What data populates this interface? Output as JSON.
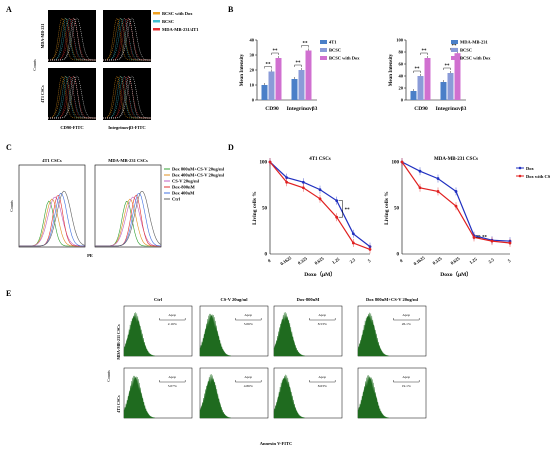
{
  "panels": {
    "A": {
      "letter": "A",
      "legend": [
        "BCSC with Dox",
        "BCSC",
        "MDA-MB-231/4T1"
      ],
      "legend_colors": [
        "#f0a020",
        "#40c0d0",
        "#e03030"
      ],
      "row_labels": [
        "MDA-MB-231",
        "4T1 CSCs"
      ],
      "ylabel": "Counts",
      "xlabels": [
        "CD90-FITC",
        "Integrinαvβ3-FITC"
      ]
    },
    "B": {
      "letter": "B",
      "left": {
        "ylabel": "Mean Intensity",
        "legend": [
          "4T1",
          "BCSC",
          "BCSC with Dox"
        ],
        "ticks": [
          "0",
          "10",
          "20",
          "30",
          "40"
        ],
        "groups": [
          "CD90",
          "Integrinαvβ3"
        ],
        "sig": [
          "**",
          "**",
          "**",
          "**",
          "**",
          "**"
        ]
      },
      "right": {
        "ylabel": "Mean Intensity",
        "legend": [
          "MDA-MB-231",
          "BCSC",
          "BCSC with Dox"
        ],
        "ticks": [
          "0",
          "20",
          "40",
          "60",
          "80",
          "100"
        ],
        "groups": [
          "CD90",
          "Integrinαvβ3"
        ],
        "sig": [
          "**",
          "**",
          "**",
          "**",
          "**",
          "**"
        ]
      },
      "colors": [
        "#4a7fc8",
        "#8a9bd8",
        "#d070d0"
      ]
    },
    "C": {
      "letter": "C",
      "titles": [
        "4T1 CSCs",
        "MDA-MB-231 CSCs"
      ],
      "ylabel": "Counts",
      "xlabel": "PE",
      "legend": [
        "Dox 800nM+CS-V 20ug/ml",
        "Dox 400nM+CS-V 20ug/ml",
        "CS-V 20ug/ml",
        "Dox-800nM",
        "Dox 400nM",
        "Ctrl"
      ]
    },
    "D": {
      "letter": "D",
      "titles": [
        "4T1 CSCs",
        "MDA-MB-231 CSCs"
      ],
      "ylabel": "Living cells %",
      "xlabel": "Doxo（μM）",
      "ticks_y": [
        "0",
        "50",
        "100"
      ],
      "ticks_x": [
        "0",
        "0.1625",
        "0.325",
        "0.625",
        "1.25",
        "2.5",
        "5"
      ],
      "legend": [
        "Dox",
        "Dox with CS-V"
      ],
      "sig": "**"
    },
    "E": {
      "letter": "E",
      "col_titles": [
        "Ctrl",
        "CS-V 20ug/ml",
        "Dox-800nM",
        "Dox 800nM+CS-V 20ug/ml"
      ],
      "row_labels": [
        "MDA-MB-231 CSCs",
        "4T1 CSCs"
      ],
      "ylabel": "Counts",
      "xlabel": "Annexin V-FITC",
      "gate_label": "Apop",
      "percent_row1": [
        "2.16%",
        "5.06%",
        "8.53%",
        "26.1%"
      ],
      "percent_row2": [
        "5.07%",
        "4.86%",
        "8.63%",
        "19.1%"
      ]
    }
  },
  "chart_data": [
    {
      "type": "bar",
      "title": "",
      "ylabel": "Mean Intensity",
      "categories": [
        "CD90",
        "Integrinαvβ3"
      ],
      "ylim": [
        0,
        40
      ],
      "series": [
        {
          "name": "4T1",
          "values": [
            10,
            14
          ]
        },
        {
          "name": "BCSC",
          "values": [
            19,
            20
          ]
        },
        {
          "name": "BCSC with Dox",
          "values": [
            28,
            33
          ]
        }
      ]
    },
    {
      "type": "bar",
      "title": "",
      "ylabel": "Mean Intensity",
      "categories": [
        "CD90",
        "Integrinαvβ3"
      ],
      "ylim": [
        0,
        100
      ],
      "series": [
        {
          "name": "MDA-MB-231",
          "values": [
            15,
            30
          ]
        },
        {
          "name": "BCSC",
          "values": [
            40,
            45
          ]
        },
        {
          "name": "BCSC with Dox",
          "values": [
            70,
            78
          ]
        }
      ]
    },
    {
      "type": "line",
      "title": "4T1 CSCs",
      "xlabel": "Doxo（μM）",
      "ylabel": "Living cells %",
      "categories": [
        "0",
        "0.1625",
        "0.325",
        "0.625",
        "1.25",
        "2.5",
        "5"
      ],
      "ylim": [
        0,
        100
      ],
      "series": [
        {
          "name": "Dox",
          "values": [
            100,
            83,
            78,
            70,
            58,
            22,
            8
          ]
        },
        {
          "name": "Dox with CS-V",
          "values": [
            100,
            78,
            72,
            60,
            40,
            12,
            5
          ]
        }
      ]
    },
    {
      "type": "line",
      "title": "MDA-MB-231 CSCs",
      "xlabel": "Doxo（μM）",
      "ylabel": "Living cells %",
      "categories": [
        "0",
        "0.1625",
        "0.325",
        "0.625",
        "1.25",
        "2.5",
        "5"
      ],
      "ylim": [
        0,
        100
      ],
      "series": [
        {
          "name": "Dox",
          "values": [
            100,
            90,
            82,
            68,
            20,
            15,
            14
          ]
        },
        {
          "name": "Dox with CS-V",
          "values": [
            100,
            72,
            68,
            52,
            18,
            14,
            12
          ]
        }
      ]
    }
  ]
}
